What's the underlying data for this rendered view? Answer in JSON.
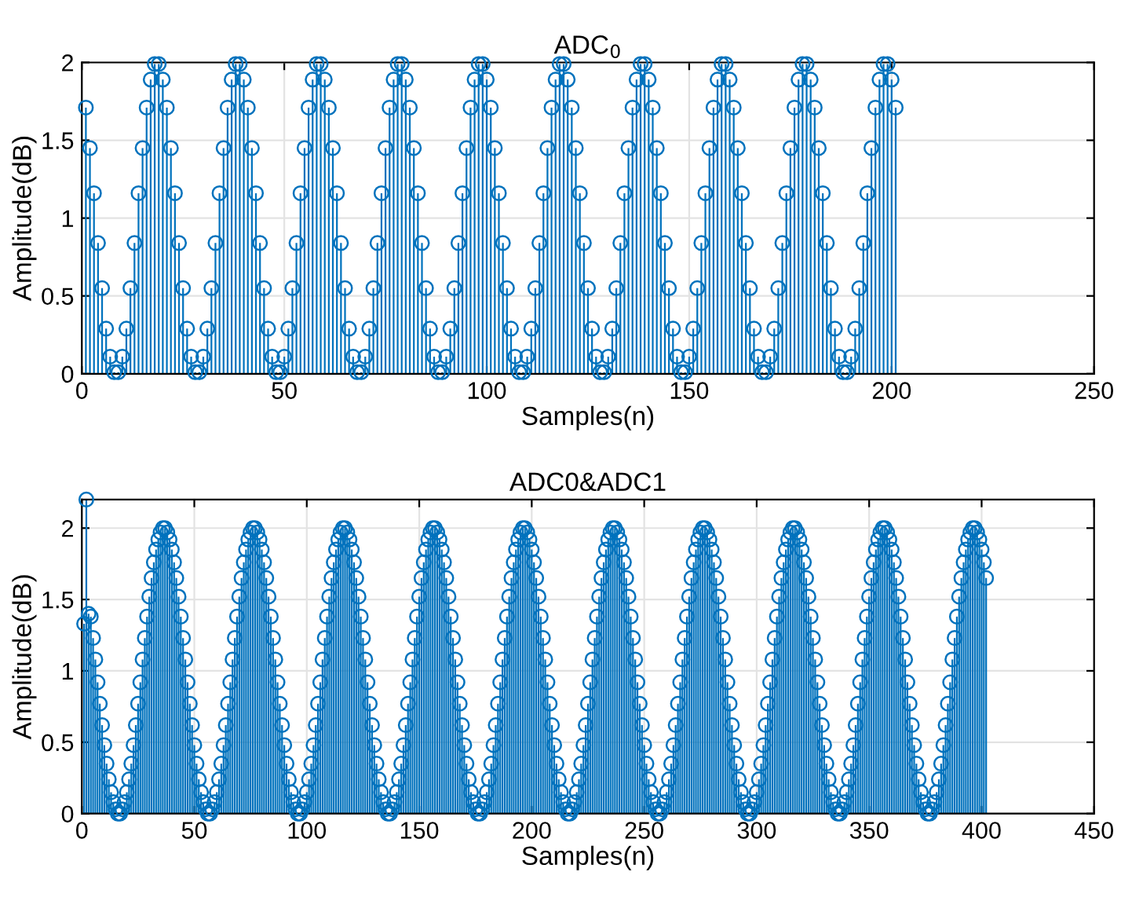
{
  "chart_data": [
    {
      "type": "lollipop",
      "title": "ADC$_{0}$",
      "xlabel": "Samples(n)",
      "ylabel": "Amplitude(dB)",
      "xlim": [
        0,
        250
      ],
      "xticks": [
        0,
        50,
        100,
        150,
        200,
        250
      ],
      "ylim": [
        0,
        2
      ],
      "yticks": [
        0,
        0.5,
        1,
        1.5,
        2
      ],
      "grid": true,
      "marker": "circle",
      "series": [
        {
          "color": "#0072bd",
          "x": [
            1,
            2,
            3,
            4,
            5,
            6,
            7,
            8,
            9,
            10,
            11,
            12,
            13,
            14,
            15,
            16,
            17,
            18,
            19,
            20,
            21,
            22,
            23,
            24,
            25,
            26,
            27,
            28,
            29,
            30,
            31,
            32,
            33,
            34,
            35,
            36,
            37,
            38,
            39,
            40,
            41,
            42,
            43,
            44,
            45,
            46,
            47,
            48,
            49,
            50,
            51,
            52,
            53,
            54,
            55,
            56,
            57,
            58,
            59,
            60,
            61,
            62,
            63,
            64,
            65,
            66,
            67,
            68,
            69,
            70,
            71,
            72,
            73,
            74,
            75,
            76,
            77,
            78,
            79,
            80,
            81,
            82,
            83,
            84,
            85,
            86,
            87,
            88,
            89,
            90,
            91,
            92,
            93,
            94,
            95,
            96,
            97,
            98,
            99,
            100,
            101,
            102,
            103,
            104,
            105,
            106,
            107,
            108,
            109,
            110,
            111,
            112,
            113,
            114,
            115,
            116,
            117,
            118,
            119,
            120,
            121,
            122,
            123,
            124,
            125,
            126,
            127,
            128,
            129,
            130,
            131,
            132,
            133,
            134,
            135,
            136,
            137,
            138,
            139,
            140,
            141,
            142,
            143,
            144,
            145,
            146,
            147,
            148,
            149,
            150,
            151,
            152,
            153,
            154,
            155,
            156,
            157,
            158,
            159,
            160,
            161,
            162,
            163,
            164,
            165,
            166,
            167,
            168,
            169,
            170,
            171,
            172,
            173,
            174,
            175,
            176,
            177,
            178,
            179,
            180,
            181,
            182,
            183,
            184,
            185,
            186,
            187,
            188,
            189,
            190,
            191,
            192,
            193,
            194,
            195,
            196,
            197,
            198,
            199,
            200,
            201
          ],
          "values": [
            1.71,
            1.45,
            1.16,
            0.84,
            0.55,
            0.29,
            0.11,
            0.01,
            0.01,
            0.11,
            0.29,
            0.55,
            0.84,
            1.16,
            1.45,
            1.71,
            1.89,
            1.99,
            1.99,
            1.89,
            1.71,
            1.45,
            1.16,
            0.84,
            0.55,
            0.29,
            0.11,
            0.01,
            0.01,
            0.11,
            0.29,
            0.55,
            0.84,
            1.16,
            1.45,
            1.71,
            1.89,
            1.99,
            1.99,
            1.89,
            1.71,
            1.45,
            1.16,
            0.84,
            0.55,
            0.29,
            0.11,
            0.01,
            0.01,
            0.11,
            0.29,
            0.55,
            0.84,
            1.16,
            1.45,
            1.71,
            1.89,
            1.99,
            1.99,
            1.89,
            1.71,
            1.45,
            1.16,
            0.84,
            0.55,
            0.29,
            0.11,
            0.01,
            0.01,
            0.11,
            0.29,
            0.55,
            0.84,
            1.16,
            1.45,
            1.71,
            1.89,
            1.99,
            1.99,
            1.89,
            1.71,
            1.45,
            1.16,
            0.84,
            0.55,
            0.29,
            0.11,
            0.01,
            0.01,
            0.11,
            0.29,
            0.55,
            0.84,
            1.16,
            1.45,
            1.71,
            1.89,
            1.99,
            1.99,
            1.89,
            1.71,
            1.45,
            1.16,
            0.84,
            0.55,
            0.29,
            0.11,
            0.01,
            0.01,
            0.11,
            0.29,
            0.55,
            0.84,
            1.16,
            1.45,
            1.71,
            1.89,
            1.99,
            1.99,
            1.89,
            1.71,
            1.45,
            1.16,
            0.84,
            0.55,
            0.29,
            0.11,
            0.01,
            0.01,
            0.11,
            0.29,
            0.55,
            0.84,
            1.16,
            1.45,
            1.71,
            1.89,
            1.99,
            1.99,
            1.89,
            1.71,
            1.45,
            1.16,
            0.84,
            0.55,
            0.29,
            0.11,
            0.01,
            0.01,
            0.11,
            0.29,
            0.55,
            0.84,
            1.16,
            1.45,
            1.71,
            1.89,
            1.99,
            1.99,
            1.89,
            1.71,
            1.45,
            1.16,
            0.84,
            0.55,
            0.29,
            0.11,
            0.01,
            0.01,
            0.11,
            0.29,
            0.55,
            0.84,
            1.16,
            1.45,
            1.71,
            1.89,
            1.99,
            1.99,
            1.89,
            1.71,
            1.45,
            1.16,
            0.84,
            0.55,
            0.29,
            0.11,
            0.01,
            0.01,
            0.11,
            0.29,
            0.55,
            0.84,
            1.16,
            1.45,
            1.71,
            1.89,
            1.99,
            1.99,
            1.89,
            1.71
          ]
        }
      ]
    },
    {
      "type": "lollipop",
      "title": "ADC0&ADC1",
      "xlabel": "Samples(n)",
      "ylabel": "Amplitude(dB)",
      "xlim": [
        0,
        450
      ],
      "xticks": [
        0,
        50,
        100,
        150,
        200,
        250,
        300,
        350,
        400,
        450
      ],
      "ylim": [
        0,
        2.2
      ],
      "yticks": [
        0,
        0.5,
        1,
        1.5,
        2
      ],
      "grid": true,
      "marker": "circle",
      "series": [
        {
          "color": "#0072bd",
          "x": [
            1,
            2,
            3,
            4,
            5,
            6,
            7,
            8,
            9,
            10,
            11,
            12,
            13,
            14,
            15,
            16,
            17,
            18,
            19,
            20,
            21,
            22,
            23,
            24,
            25,
            26,
            27,
            28,
            29,
            30,
            31,
            32,
            33,
            34,
            35,
            36,
            37,
            38,
            39,
            40,
            41,
            42,
            43,
            44,
            45,
            46,
            47,
            48,
            49,
            50,
            51,
            52,
            53,
            54,
            55,
            56,
            57,
            58,
            59,
            60,
            61,
            62,
            63,
            64,
            65,
            66,
            67,
            68,
            69,
            70,
            71,
            72,
            73,
            74,
            75,
            76,
            77,
            78,
            79,
            80,
            81,
            82,
            83,
            84,
            85,
            86,
            87,
            88,
            89,
            90,
            91,
            92,
            93,
            94,
            95,
            96,
            97,
            98,
            99,
            100,
            101,
            102,
            103,
            104,
            105,
            106,
            107,
            108,
            109,
            110,
            111,
            112,
            113,
            114,
            115,
            116,
            117,
            118,
            119,
            120,
            121,
            122,
            123,
            124,
            125,
            126,
            127,
            128,
            129,
            130,
            131,
            132,
            133,
            134,
            135,
            136,
            137,
            138,
            139,
            140,
            141,
            142,
            143,
            144,
            145,
            146,
            147,
            148,
            149,
            150,
            151,
            152,
            153,
            154,
            155,
            156,
            157,
            158,
            159,
            160,
            161,
            162,
            163,
            164,
            165,
            166,
            167,
            168,
            169,
            170,
            171,
            172,
            173,
            174,
            175,
            176,
            177,
            178,
            179,
            180,
            181,
            182,
            183,
            184,
            185,
            186,
            187,
            188,
            189,
            190,
            191,
            192,
            193,
            194,
            195,
            196,
            197,
            198,
            199,
            200,
            201,
            202,
            203,
            204,
            205,
            206,
            207,
            208,
            209,
            210,
            211,
            212,
            213,
            214,
            215,
            216,
            217,
            218,
            219,
            220,
            221,
            222,
            223,
            224,
            225,
            226,
            227,
            228,
            229,
            230,
            231,
            232,
            233,
            234,
            235,
            236,
            237,
            238,
            239,
            240,
            241,
            242,
            243,
            244,
            245,
            246,
            247,
            248,
            249,
            250,
            251,
            252,
            253,
            254,
            255,
            256,
            257,
            258,
            259,
            260,
            261,
            262,
            263,
            264,
            265,
            266,
            267,
            268,
            269,
            270,
            271,
            272,
            273,
            274,
            275,
            276,
            277,
            278,
            279,
            280,
            281,
            282,
            283,
            284,
            285,
            286,
            287,
            288,
            289,
            290,
            291,
            292,
            293,
            294,
            295,
            296,
            297,
            298,
            299,
            300,
            301,
            302,
            303,
            304,
            305,
            306,
            307,
            308,
            309,
            310,
            311,
            312,
            313,
            314,
            315,
            316,
            317,
            318,
            319,
            320,
            321,
            322,
            323,
            324,
            325,
            326,
            327,
            328,
            329,
            330,
            331,
            332,
            333,
            334,
            335,
            336,
            337,
            338,
            339,
            340,
            341,
            342,
            343,
            344,
            345,
            346,
            347,
            348,
            349,
            350,
            351,
            352,
            353,
            354,
            355,
            356,
            357,
            358,
            359,
            360,
            361,
            362,
            363,
            364,
            365,
            366,
            367,
            368,
            369,
            370,
            371,
            372,
            373,
            374,
            375,
            376,
            377,
            378,
            379,
            380,
            381,
            382,
            383,
            384,
            385,
            386,
            387,
            388,
            389,
            390,
            391,
            392,
            393,
            394,
            395,
            396,
            397,
            398,
            399,
            400,
            401,
            402
          ],
          "values": [
            1.33,
            2.2,
            1.4,
            1.38,
            1.23,
            1.08,
            0.92,
            0.77,
            0.62,
            0.48,
            0.35,
            0.24,
            0.15,
            0.08,
            0.03,
            0,
            0,
            0.03,
            0.08,
            0.15,
            0.24,
            0.35,
            0.48,
            0.62,
            0.77,
            0.92,
            1.08,
            1.23,
            1.38,
            1.52,
            1.65,
            1.76,
            1.85,
            1.92,
            1.97,
            2.0,
            2.0,
            1.97,
            1.92,
            1.85,
            1.76,
            1.65,
            1.52,
            1.38,
            1.23,
            1.08,
            0.92,
            0.77,
            0.62,
            0.48,
            0.35,
            0.24,
            0.15,
            0.08,
            0.03,
            0,
            0,
            0.03,
            0.08,
            0.15,
            0.24,
            0.35,
            0.48,
            0.62,
            0.77,
            0.92,
            1.08,
            1.23,
            1.38,
            1.52,
            1.65,
            1.76,
            1.85,
            1.92,
            1.97,
            2.0,
            2.0,
            1.97,
            1.92,
            1.85,
            1.76,
            1.65,
            1.52,
            1.38,
            1.23,
            1.08,
            0.92,
            0.77,
            0.62,
            0.48,
            0.35,
            0.24,
            0.15,
            0.08,
            0.03,
            0,
            0,
            0.03,
            0.08,
            0.15,
            0.24,
            0.35,
            0.48,
            0.62,
            0.77,
            0.92,
            1.08,
            1.23,
            1.38,
            1.52,
            1.65,
            1.76,
            1.85,
            1.92,
            1.97,
            2.0,
            2.0,
            1.97,
            1.92,
            1.85,
            1.76,
            1.65,
            1.52,
            1.38,
            1.23,
            1.08,
            0.92,
            0.77,
            0.62,
            0.48,
            0.35,
            0.24,
            0.15,
            0.08,
            0.03,
            0,
            0,
            0.03,
            0.08,
            0.15,
            0.24,
            0.35,
            0.48,
            0.62,
            0.77,
            0.92,
            1.08,
            1.23,
            1.38,
            1.52,
            1.65,
            1.76,
            1.85,
            1.92,
            1.97,
            2.0,
            2.0,
            1.97,
            1.92,
            1.85,
            1.76,
            1.65,
            1.52,
            1.38,
            1.23,
            1.08,
            0.92,
            0.77,
            0.62,
            0.48,
            0.35,
            0.24,
            0.15,
            0.08,
            0.03,
            0,
            0,
            0.03,
            0.08,
            0.15,
            0.24,
            0.35,
            0.48,
            0.62,
            0.77,
            0.92,
            1.08,
            1.23,
            1.38,
            1.52,
            1.65,
            1.76,
            1.85,
            1.92,
            1.97,
            2.0,
            2.0,
            1.97,
            1.92,
            1.85,
            1.76,
            1.65,
            1.52,
            1.38,
            1.23,
            1.08,
            0.92,
            0.77,
            0.62,
            0.48,
            0.35,
            0.24,
            0.15,
            0.08,
            0.03,
            0,
            0,
            0.03,
            0.08,
            0.15,
            0.24,
            0.35,
            0.48,
            0.62,
            0.77,
            0.92,
            1.08,
            1.23,
            1.38,
            1.52,
            1.65,
            1.76,
            1.85,
            1.92,
            1.97,
            2.0,
            2.0,
            1.97,
            1.92,
            1.85,
            1.76,
            1.65,
            1.52,
            1.38,
            1.23,
            1.08,
            0.92,
            0.77,
            0.62,
            0.48,
            0.35,
            0.24,
            0.15,
            0.08,
            0.03,
            0,
            0,
            0.03,
            0.08,
            0.15,
            0.24,
            0.35,
            0.48,
            0.62,
            0.77,
            0.92,
            1.08,
            1.23,
            1.38,
            1.52,
            1.65,
            1.76,
            1.85,
            1.92,
            1.97,
            2.0,
            2.0,
            1.97,
            1.92,
            1.85,
            1.76,
            1.65,
            1.52,
            1.38,
            1.23,
            1.08,
            0.92,
            0.77,
            0.62,
            0.48,
            0.35,
            0.24,
            0.15,
            0.08,
            0.03,
            0,
            0,
            0.03,
            0.08,
            0.15,
            0.24,
            0.35,
            0.48,
            0.62,
            0.77,
            0.92,
            1.08,
            1.23,
            1.38,
            1.52,
            1.65,
            1.76,
            1.85,
            1.92,
            1.97,
            2.0,
            2.0,
            1.97,
            1.92,
            1.85,
            1.76,
            1.65,
            1.52,
            1.38,
            1.23,
            1.08,
            0.92,
            0.77,
            0.62,
            0.48,
            0.35,
            0.24,
            0.15,
            0.08,
            0.03,
            0,
            0,
            0.03,
            0.08,
            0.15,
            0.24,
            0.35,
            0.48,
            0.62,
            0.77,
            0.92,
            1.08,
            1.23,
            1.38,
            1.52,
            1.65,
            1.76,
            1.85,
            1.92,
            1.97,
            2.0,
            2.0,
            1.97,
            1.92,
            1.85,
            1.76,
            1.65,
            1.52,
            1.38,
            1.23,
            1.08,
            0.92,
            0.77,
            0.62,
            0.48,
            0.35,
            0.24,
            0.15,
            0.08,
            0.03,
            0,
            0,
            0.03,
            0.08,
            0.15,
            0.24,
            0.35,
            0.48,
            0.62,
            0.77,
            0.92,
            1.08,
            1.23,
            1.38,
            1.52,
            1.65,
            1.76,
            1.85,
            1.92,
            1.97,
            2.0,
            2.0,
            1.97,
            1.92,
            1.85,
            1.76,
            1.65
          ]
        }
      ]
    }
  ]
}
